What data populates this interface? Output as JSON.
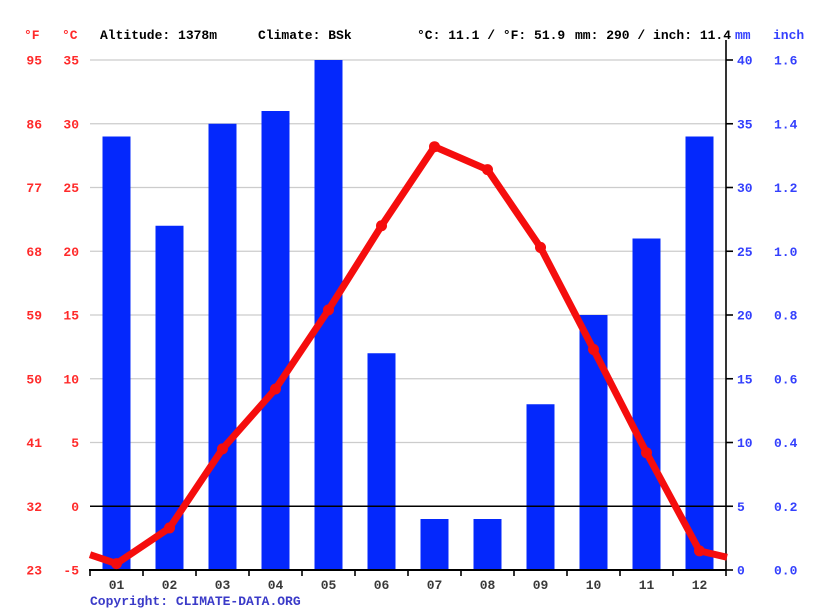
{
  "header": {
    "f_unit": "°F",
    "c_unit": "°C",
    "altitude": "Altitude: 1378m",
    "climate": "Climate: BSk",
    "temp_summary": "°C: 11.1 / °F: 51.9",
    "precip_summary": "mm: 290 / inch: 11.4",
    "mm_unit": "mm",
    "inch_unit": "inch"
  },
  "footer": {
    "copyright_label": "Copyright: ",
    "site_link": "CLIMATE-DATA.ORG"
  },
  "chart_data": {
    "type": "climograph-bar-line",
    "months": [
      "01",
      "02",
      "03",
      "04",
      "05",
      "06",
      "07",
      "08",
      "09",
      "10",
      "11",
      "12"
    ],
    "series": [
      {
        "name": "precipitation",
        "unit": "mm",
        "type": "bar",
        "values": [
          34,
          27,
          35,
          36,
          40,
          17,
          4,
          4,
          13,
          20,
          26,
          34
        ]
      },
      {
        "name": "temperature",
        "unit": "°C",
        "type": "line",
        "values": [
          -4.5,
          -1.7,
          4.5,
          9.2,
          15.4,
          22.0,
          28.2,
          26.4,
          20.3,
          12.3,
          4.2,
          -3.5
        ]
      }
    ],
    "line_edge_values_c": {
      "left": -3.8,
      "right": -4.0
    },
    "annual_mean_c": 11.1,
    "annual_mean_f": 51.9,
    "annual_precip_mm": 290,
    "annual_precip_inch": 11.4,
    "axes": {
      "left_f_ticks": [
        "95",
        "86",
        "77",
        "68",
        "59",
        "50",
        "41",
        "32",
        "23"
      ],
      "left_c_ticks": [
        "35",
        "30",
        "25",
        "20",
        "15",
        "10",
        "5",
        "0",
        "-5"
      ],
      "right_mm_ticks": [
        "40",
        "35",
        "30",
        "25",
        "20",
        "15",
        "10",
        "5",
        "0"
      ],
      "right_inch_ticks": [
        "1.6",
        "1.4",
        "1.2",
        "1.0",
        "0.8",
        "0.6",
        "0.4",
        "0.2",
        "0.0"
      ],
      "c_range": [
        -5,
        35
      ],
      "mm_range": [
        0,
        40
      ],
      "zero_line_c": 0,
      "grid": true,
      "grid_step_c": 5,
      "grid_step_mm": 5
    },
    "colors": {
      "bar_blue": "#0428fc",
      "line_red": "#f50d0d",
      "left_label_red": "#ff2a2a",
      "right_label_blue": "#3440fd",
      "month_label_gray": "#3a3a3a",
      "grid_gray": "#cccccc",
      "axis_black": "#000000",
      "copyright_blue": "#3a3ac8"
    }
  }
}
